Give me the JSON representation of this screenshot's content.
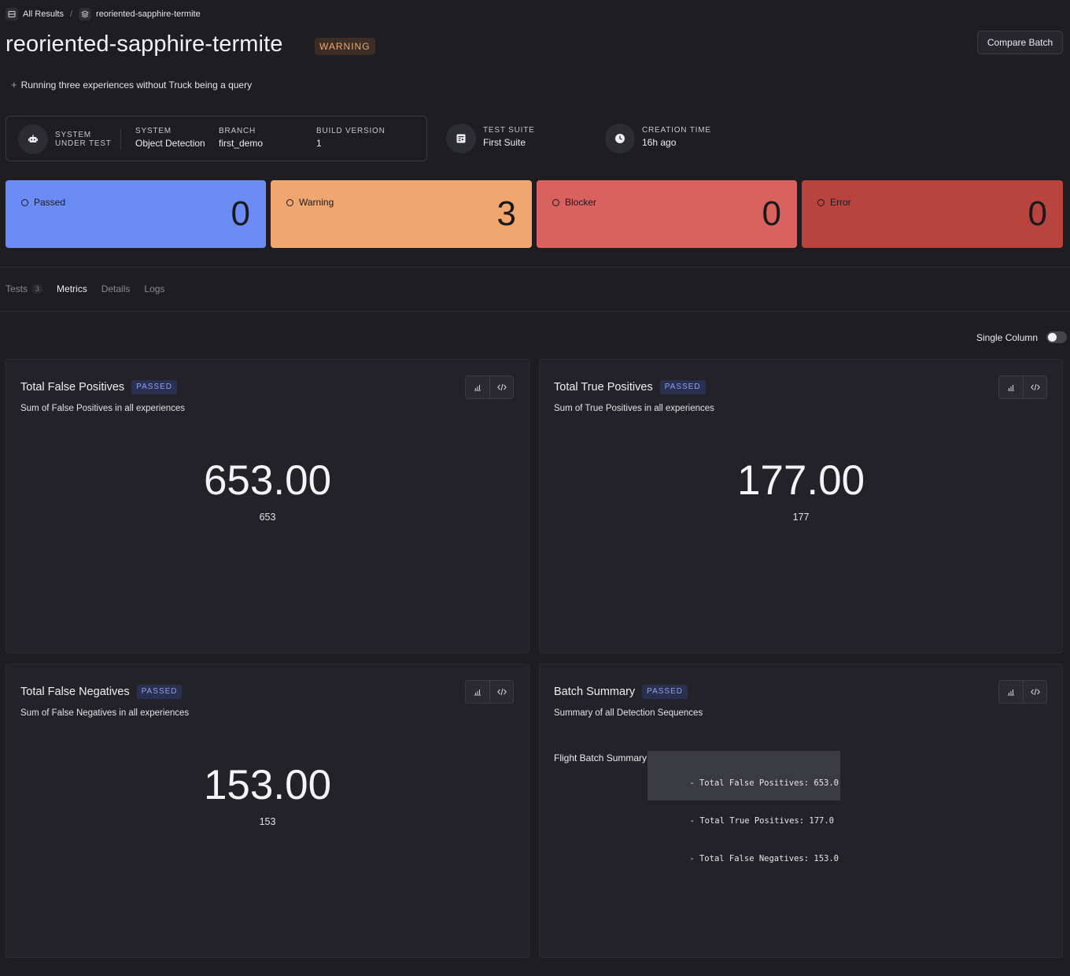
{
  "breadcrumb": {
    "root": "All Results",
    "current": "reoriented-sapphire-termite"
  },
  "batch": {
    "name": "reoriented-sapphire-termite",
    "status": "WARNING",
    "description": "Running three experiences without Truck being a query"
  },
  "header": {
    "compare_label": "Compare Batch"
  },
  "system": {
    "sut_label_1": "SYSTEM",
    "sut_label_2": "UNDER TEST",
    "system_label": "SYSTEM",
    "system_value": "Object Detection",
    "branch_label": "BRANCH",
    "branch_value": "first_demo",
    "build_label": "BUILD VERSION",
    "build_value": "1"
  },
  "test_suite": {
    "label": "TEST SUITE",
    "value": "First Suite"
  },
  "creation": {
    "label": "CREATION TIME",
    "value": "16h ago"
  },
  "status_cards": [
    {
      "label": "Passed",
      "count": "0",
      "color": "#6c8cf5"
    },
    {
      "label": "Warning",
      "count": "3",
      "color": "#f0a66e"
    },
    {
      "label": "Blocker",
      "count": "0",
      "color": "#d9625f"
    },
    {
      "label": "Error",
      "count": "0",
      "color": "#b9443e"
    }
  ],
  "tabs": [
    {
      "label": "Tests",
      "count": "3"
    },
    {
      "label": "Metrics"
    },
    {
      "label": "Details"
    },
    {
      "label": "Logs"
    }
  ],
  "active_tab": "Metrics",
  "layout_toggle": {
    "label": "Single Column",
    "enabled": false
  },
  "metrics": [
    {
      "title": "Total False Positives",
      "status": "PASSED",
      "description": "Sum of False Positives in all experiences",
      "value": "653.00",
      "raw": "653"
    },
    {
      "title": "Total True Positives",
      "status": "PASSED",
      "description": "Sum of True Positives in all experiences",
      "value": "177.00",
      "raw": "177"
    },
    {
      "title": "Total False Negatives",
      "status": "PASSED",
      "description": "Sum of False Negatives in all experiences",
      "value": "153.00",
      "raw": "153"
    },
    {
      "title": "Batch Summary",
      "status": "PASSED",
      "description": "Summary of all Detection Sequences",
      "summary_label": "Flight Batch Summary",
      "summary_lines": [
        "- Total False Positives: 653.0",
        "- Total True Positives: 177.0",
        "- Total False Negatives: 153.0"
      ]
    }
  ]
}
